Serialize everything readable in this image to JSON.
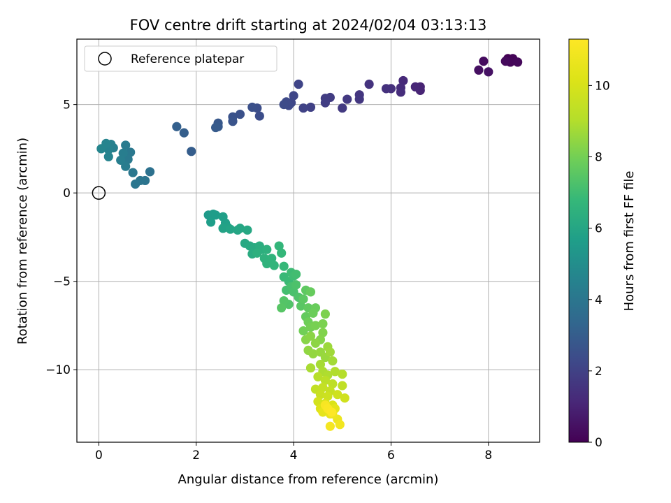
{
  "chart_data": {
    "type": "scatter",
    "title": "FOV centre drift starting at 2024/02/04 03:13:13",
    "xlabel": "Angular distance from reference (arcmin)",
    "ylabel": "Rotation from reference (arcmin)",
    "xlim": [
      -0.45,
      9.05
    ],
    "ylim": [
      -14.1,
      8.7
    ],
    "xticks": [
      0,
      2,
      4,
      6,
      8
    ],
    "yticks": [
      -10,
      -5,
      0,
      5
    ],
    "grid": true,
    "legend": {
      "position": "top-left",
      "entries": [
        "Reference platepar"
      ]
    },
    "reference_point": {
      "x": 0,
      "y": 0,
      "label": "Reference platepar"
    },
    "colorbar": {
      "label": "Hours from first FF file",
      "range": [
        0,
        11.3
      ],
      "ticks": [
        0,
        2,
        4,
        6,
        8,
        10
      ],
      "colormap": "viridis"
    },
    "series": [
      {
        "name": "FOV centre",
        "points": [
          {
            "x": 8.4,
            "y": 7.6,
            "t": 0.0
          },
          {
            "x": 8.5,
            "y": 7.6,
            "t": 0.1
          },
          {
            "x": 8.45,
            "y": 7.4,
            "t": 0.15
          },
          {
            "x": 8.6,
            "y": 7.4,
            "t": 0.2
          },
          {
            "x": 8.35,
            "y": 7.45,
            "t": 0.25
          },
          {
            "x": 7.9,
            "y": 7.45,
            "t": 0.3
          },
          {
            "x": 7.8,
            "y": 6.95,
            "t": 0.4
          },
          {
            "x": 8.0,
            "y": 6.85,
            "t": 0.5
          },
          {
            "x": 6.6,
            "y": 6.0,
            "t": 1.0
          },
          {
            "x": 6.6,
            "y": 5.8,
            "t": 1.05
          },
          {
            "x": 6.5,
            "y": 6.0,
            "t": 1.1
          },
          {
            "x": 6.25,
            "y": 6.35,
            "t": 1.2
          },
          {
            "x": 6.2,
            "y": 5.95,
            "t": 1.25
          },
          {
            "x": 6.2,
            "y": 5.7,
            "t": 1.3
          },
          {
            "x": 6.0,
            "y": 5.9,
            "t": 1.4
          },
          {
            "x": 5.9,
            "y": 5.9,
            "t": 1.45
          },
          {
            "x": 5.55,
            "y": 6.15,
            "t": 1.5
          },
          {
            "x": 5.35,
            "y": 5.55,
            "t": 1.6
          },
          {
            "x": 5.35,
            "y": 5.3,
            "t": 1.65
          },
          {
            "x": 5.1,
            "y": 5.3,
            "t": 1.7
          },
          {
            "x": 5.0,
            "y": 4.8,
            "t": 1.75
          },
          {
            "x": 4.75,
            "y": 5.4,
            "t": 1.8
          },
          {
            "x": 4.65,
            "y": 5.35,
            "t": 1.85
          },
          {
            "x": 4.65,
            "y": 5.1,
            "t": 1.9
          },
          {
            "x": 4.35,
            "y": 4.85,
            "t": 2.0
          },
          {
            "x": 4.2,
            "y": 4.8,
            "t": 2.05
          },
          {
            "x": 4.1,
            "y": 6.15,
            "t": 2.1
          },
          {
            "x": 4.0,
            "y": 5.5,
            "t": 2.15
          },
          {
            "x": 3.95,
            "y": 5.1,
            "t": 2.2
          },
          {
            "x": 3.9,
            "y": 4.95,
            "t": 2.25
          },
          {
            "x": 3.85,
            "y": 5.15,
            "t": 2.3
          },
          {
            "x": 3.8,
            "y": 5.0,
            "t": 2.35
          },
          {
            "x": 3.3,
            "y": 4.35,
            "t": 2.4
          },
          {
            "x": 3.25,
            "y": 4.8,
            "t": 2.45
          },
          {
            "x": 3.15,
            "y": 4.85,
            "t": 2.5
          },
          {
            "x": 2.9,
            "y": 4.45,
            "t": 2.55
          },
          {
            "x": 2.75,
            "y": 4.3,
            "t": 2.6
          },
          {
            "x": 2.75,
            "y": 4.05,
            "t": 2.65
          },
          {
            "x": 2.45,
            "y": 3.95,
            "t": 2.8
          },
          {
            "x": 2.45,
            "y": 3.75,
            "t": 2.85
          },
          {
            "x": 2.4,
            "y": 3.7,
            "t": 2.9
          },
          {
            "x": 1.9,
            "y": 2.35,
            "t": 3.0
          },
          {
            "x": 1.75,
            "y": 3.4,
            "t": 3.05
          },
          {
            "x": 1.6,
            "y": 3.75,
            "t": 3.1
          },
          {
            "x": 1.05,
            "y": 1.2,
            "t": 3.8
          },
          {
            "x": 0.95,
            "y": 0.7,
            "t": 3.9
          },
          {
            "x": 0.85,
            "y": 0.7,
            "t": 3.95
          },
          {
            "x": 0.75,
            "y": 0.5,
            "t": 4.0
          },
          {
            "x": 0.7,
            "y": 1.15,
            "t": 4.05
          },
          {
            "x": 0.65,
            "y": 2.3,
            "t": 4.1
          },
          {
            "x": 0.6,
            "y": 1.9,
            "t": 4.15
          },
          {
            "x": 0.55,
            "y": 2.7,
            "t": 4.2
          },
          {
            "x": 0.55,
            "y": 1.5,
            "t": 4.25
          },
          {
            "x": 0.5,
            "y": 2.25,
            "t": 4.3
          },
          {
            "x": 0.45,
            "y": 1.85,
            "t": 4.35
          },
          {
            "x": 0.3,
            "y": 2.55,
            "t": 4.4
          },
          {
            "x": 0.25,
            "y": 2.75,
            "t": 4.45
          },
          {
            "x": 0.2,
            "y": 2.45,
            "t": 4.5
          },
          {
            "x": 0.2,
            "y": 2.05,
            "t": 4.55
          },
          {
            "x": 0.15,
            "y": 2.8,
            "t": 4.6
          },
          {
            "x": 0.05,
            "y": 2.5,
            "t": 4.65
          },
          {
            "x": 2.25,
            "y": -1.25,
            "t": 5.5
          },
          {
            "x": 2.35,
            "y": -1.2,
            "t": 5.55
          },
          {
            "x": 2.4,
            "y": -1.25,
            "t": 5.6
          },
          {
            "x": 2.3,
            "y": -1.65,
            "t": 5.65
          },
          {
            "x": 2.55,
            "y": -1.35,
            "t": 5.7
          },
          {
            "x": 2.6,
            "y": -1.7,
            "t": 5.75
          },
          {
            "x": 2.65,
            "y": -1.95,
            "t": 5.8
          },
          {
            "x": 2.55,
            "y": -2.0,
            "t": 5.85
          },
          {
            "x": 2.7,
            "y": -2.05,
            "t": 5.9
          },
          {
            "x": 2.85,
            "y": -2.1,
            "t": 5.95
          },
          {
            "x": 2.9,
            "y": -2.0,
            "t": 6.0
          },
          {
            "x": 3.05,
            "y": -2.1,
            "t": 6.05
          },
          {
            "x": 3.0,
            "y": -2.85,
            "t": 6.1
          },
          {
            "x": 3.1,
            "y": -3.0,
            "t": 6.15
          },
          {
            "x": 3.2,
            "y": -3.1,
            "t": 6.2
          },
          {
            "x": 3.15,
            "y": -3.45,
            "t": 6.25
          },
          {
            "x": 3.3,
            "y": -3.0,
            "t": 6.3
          },
          {
            "x": 3.35,
            "y": -3.2,
            "t": 6.35
          },
          {
            "x": 3.25,
            "y": -3.4,
            "t": 6.4
          },
          {
            "x": 3.45,
            "y": -3.2,
            "t": 6.45
          },
          {
            "x": 3.4,
            "y": -3.7,
            "t": 6.5
          },
          {
            "x": 3.45,
            "y": -4.0,
            "t": 6.55
          },
          {
            "x": 3.55,
            "y": -3.7,
            "t": 6.6
          },
          {
            "x": 3.6,
            "y": -4.1,
            "t": 6.65
          },
          {
            "x": 3.7,
            "y": -3.0,
            "t": 6.7
          },
          {
            "x": 3.75,
            "y": -3.4,
            "t": 6.75
          },
          {
            "x": 3.8,
            "y": -4.15,
            "t": 6.8
          },
          {
            "x": 3.8,
            "y": -4.75,
            "t": 6.85
          },
          {
            "x": 3.9,
            "y": -5.0,
            "t": 6.9
          },
          {
            "x": 3.95,
            "y": -4.5,
            "t": 6.95
          },
          {
            "x": 4.0,
            "y": -4.7,
            "t": 7.0
          },
          {
            "x": 4.05,
            "y": -4.6,
            "t": 7.05
          },
          {
            "x": 3.85,
            "y": -5.5,
            "t": 7.1
          },
          {
            "x": 3.95,
            "y": -5.3,
            "t": 7.15
          },
          {
            "x": 4.0,
            "y": -5.6,
            "t": 7.2
          },
          {
            "x": 4.05,
            "y": -5.2,
            "t": 7.25
          },
          {
            "x": 4.1,
            "y": -5.9,
            "t": 7.3
          },
          {
            "x": 3.9,
            "y": -6.3,
            "t": 7.35
          },
          {
            "x": 3.8,
            "y": -6.1,
            "t": 7.4
          },
          {
            "x": 3.75,
            "y": -6.5,
            "t": 7.45
          },
          {
            "x": 4.15,
            "y": -6.4,
            "t": 7.5
          },
          {
            "x": 4.2,
            "y": -6.0,
            "t": 7.55
          },
          {
            "x": 4.25,
            "y": -5.5,
            "t": 7.6
          },
          {
            "x": 4.3,
            "y": -6.5,
            "t": 7.65
          },
          {
            "x": 4.25,
            "y": -7.0,
            "t": 7.7
          },
          {
            "x": 4.35,
            "y": -5.6,
            "t": 7.75
          },
          {
            "x": 4.45,
            "y": -6.5,
            "t": 7.8
          },
          {
            "x": 4.4,
            "y": -6.8,
            "t": 7.85
          },
          {
            "x": 4.3,
            "y": -7.3,
            "t": 7.9
          },
          {
            "x": 4.2,
            "y": -7.8,
            "t": 7.95
          },
          {
            "x": 4.35,
            "y": -7.6,
            "t": 8.0
          },
          {
            "x": 4.45,
            "y": -7.5,
            "t": 8.05
          },
          {
            "x": 4.6,
            "y": -7.4,
            "t": 8.1
          },
          {
            "x": 4.65,
            "y": -6.85,
            "t": 8.15
          },
          {
            "x": 4.6,
            "y": -7.9,
            "t": 8.2
          },
          {
            "x": 4.55,
            "y": -8.3,
            "t": 8.25
          },
          {
            "x": 4.25,
            "y": -8.3,
            "t": 8.3
          },
          {
            "x": 4.35,
            "y": -8.1,
            "t": 8.35
          },
          {
            "x": 4.45,
            "y": -8.5,
            "t": 8.4
          },
          {
            "x": 4.3,
            "y": -8.9,
            "t": 8.45
          },
          {
            "x": 4.4,
            "y": -9.1,
            "t": 8.5
          },
          {
            "x": 4.55,
            "y": -9.0,
            "t": 8.55
          },
          {
            "x": 4.65,
            "y": -9.3,
            "t": 8.6
          },
          {
            "x": 4.7,
            "y": -8.7,
            "t": 8.65
          },
          {
            "x": 4.75,
            "y": -9.0,
            "t": 8.7
          },
          {
            "x": 4.8,
            "y": -9.5,
            "t": 8.75
          },
          {
            "x": 4.55,
            "y": -9.7,
            "t": 8.8
          },
          {
            "x": 4.35,
            "y": -9.9,
            "t": 8.85
          },
          {
            "x": 4.6,
            "y": -10.1,
            "t": 8.9
          },
          {
            "x": 4.7,
            "y": -10.3,
            "t": 8.95
          },
          {
            "x": 4.85,
            "y": -10.1,
            "t": 9.0
          },
          {
            "x": 5.0,
            "y": -10.25,
            "t": 9.05
          },
          {
            "x": 4.5,
            "y": -10.4,
            "t": 9.1
          },
          {
            "x": 4.65,
            "y": -10.6,
            "t": 9.2
          },
          {
            "x": 4.8,
            "y": -10.8,
            "t": 9.3
          },
          {
            "x": 5.0,
            "y": -10.9,
            "t": 9.35
          },
          {
            "x": 4.45,
            "y": -11.1,
            "t": 9.4
          },
          {
            "x": 4.6,
            "y": -11.0,
            "t": 9.45
          },
          {
            "x": 4.75,
            "y": -11.2,
            "t": 9.5
          },
          {
            "x": 4.55,
            "y": -11.4,
            "t": 9.6
          },
          {
            "x": 4.7,
            "y": -11.5,
            "t": 9.7
          },
          {
            "x": 4.9,
            "y": -11.4,
            "t": 9.75
          },
          {
            "x": 5.05,
            "y": -11.6,
            "t": 9.8
          },
          {
            "x": 4.5,
            "y": -11.8,
            "t": 9.9
          },
          {
            "x": 4.65,
            "y": -11.9,
            "t": 10.0
          },
          {
            "x": 4.8,
            "y": -12.0,
            "t": 10.1
          },
          {
            "x": 4.55,
            "y": -12.2,
            "t": 10.2
          },
          {
            "x": 4.7,
            "y": -12.3,
            "t": 10.3
          },
          {
            "x": 4.85,
            "y": -12.2,
            "t": 10.4
          },
          {
            "x": 4.6,
            "y": -12.4,
            "t": 10.5
          },
          {
            "x": 4.75,
            "y": -12.5,
            "t": 10.6
          },
          {
            "x": 4.9,
            "y": -12.8,
            "t": 10.7
          },
          {
            "x": 4.8,
            "y": -12.5,
            "t": 10.8
          },
          {
            "x": 4.95,
            "y": -13.1,
            "t": 10.9
          },
          {
            "x": 4.75,
            "y": -13.2,
            "t": 11.0
          },
          {
            "x": 4.65,
            "y": -12.0,
            "t": 11.1
          },
          {
            "x": 4.7,
            "y": -12.2,
            "t": 11.2
          },
          {
            "x": 4.78,
            "y": -12.4,
            "t": 11.3
          }
        ]
      }
    ]
  }
}
